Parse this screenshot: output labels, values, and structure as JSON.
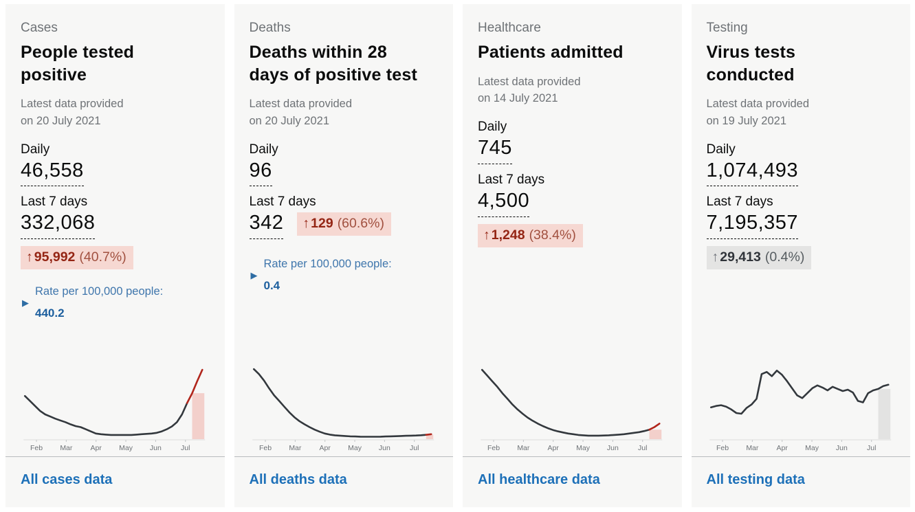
{
  "months": [
    "Feb",
    "Mar",
    "Apr",
    "May",
    "Jun",
    "Jul"
  ],
  "colors": {
    "link_blue": "#1d70b8",
    "heading_black": "#0b0c0c",
    "muted_grey": "#6e7276",
    "bad_badge_bg": "#f6d8d2",
    "bad_badge_text": "#942514",
    "neutral_badge_bg": "#e4e4e3",
    "neutral_badge_text": "#30343a",
    "chart_line": "#33383d",
    "chart_highlight_red": "#b1261c",
    "cases_band_pink": "#f3d0cb",
    "testing_band_grey": "#e3e3e2"
  },
  "cards": [
    {
      "eyebrow": "Cases",
      "title": "People tested positive",
      "provided_line1": "Latest data provided",
      "provided_line2": "on 20 July 2021",
      "daily_label": "Daily",
      "daily_value": "46,558",
      "week_label": "Last 7 days",
      "week_value": "332,068",
      "change": {
        "arrow": "↑",
        "value": "95,992",
        "percent": "(40.7%)",
        "direction": "up-bad"
      },
      "rate": {
        "label": "Rate per 100,000 people:",
        "value": "440.2"
      },
      "footer_link": "All cases data",
      "chart": {
        "type": "line",
        "x_span": "late Jan 2021 to mid Jul 2021",
        "values": [
          0.59,
          0.52,
          0.45,
          0.38,
          0.33,
          0.3,
          0.27,
          0.245,
          0.22,
          0.19,
          0.165,
          0.15,
          0.12,
          0.09,
          0.06,
          0.05,
          0.045,
          0.04,
          0.04,
          0.04,
          0.04,
          0.04,
          0.045,
          0.05,
          0.055,
          0.06,
          0.07,
          0.09,
          0.12,
          0.16,
          0.22,
          0.33,
          0.49,
          0.63,
          0.8,
          0.96
        ],
        "highlight_start": 32,
        "band_start": 33,
        "band_color": "#f3d0cb",
        "line_color": "#33383d",
        "highlight_color": "#b1261c"
      }
    },
    {
      "eyebrow": "Deaths",
      "title": "Deaths within 28 days of positive test",
      "provided_line1": "Latest data provided",
      "provided_line2": "on 20 July 2021",
      "daily_label": "Daily",
      "daily_value": "96",
      "week_label": "Last 7 days",
      "week_value": "342",
      "change": {
        "arrow": "↑",
        "value": "129",
        "percent": "(60.6%)",
        "direction": "up-bad"
      },
      "rate": {
        "label": "Rate per 100,000 people:",
        "value": "0.4"
      },
      "footer_link": "All deaths data",
      "chart": {
        "type": "line",
        "x_span": "late Jan 2021 to mid Jul 2021",
        "values": [
          0.97,
          0.9,
          0.81,
          0.7,
          0.6,
          0.52,
          0.44,
          0.36,
          0.29,
          0.235,
          0.19,
          0.15,
          0.115,
          0.085,
          0.06,
          0.045,
          0.035,
          0.03,
          0.025,
          0.02,
          0.018,
          0.016,
          0.015,
          0.015,
          0.015,
          0.016,
          0.018,
          0.02,
          0.022,
          0.025,
          0.028,
          0.03,
          0.032,
          0.036,
          0.042,
          0.05
        ],
        "highlight_start": 34,
        "band_start": 34,
        "band_color": "#f3d0cb",
        "line_color": "#33383d",
        "highlight_color": "#b1261c"
      }
    },
    {
      "eyebrow": "Healthcare",
      "title": "Patients admitted",
      "provided_line1": "Latest data provided",
      "provided_line2": "on 14 July 2021",
      "daily_label": "Daily",
      "daily_value": "745",
      "week_label": "Last 7 days",
      "week_value": "4,500",
      "change": {
        "arrow": "↑",
        "value": "1,248",
        "percent": "(38.4%)",
        "direction": "up-bad"
      },
      "footer_link": "All healthcare data",
      "chart": {
        "type": "line",
        "x_span": "late Jan 2021 to mid Jul 2021",
        "values": [
          0.96,
          0.88,
          0.8,
          0.72,
          0.63,
          0.55,
          0.47,
          0.4,
          0.34,
          0.285,
          0.24,
          0.2,
          0.165,
          0.135,
          0.11,
          0.09,
          0.075,
          0.06,
          0.05,
          0.04,
          0.035,
          0.03,
          0.03,
          0.03,
          0.032,
          0.035,
          0.04,
          0.045,
          0.05,
          0.06,
          0.07,
          0.08,
          0.095,
          0.115,
          0.15,
          0.2
        ],
        "highlight_start": 33,
        "band_start": 33,
        "band_color": "#f3d0cb",
        "line_color": "#33383d",
        "highlight_color": "#b1261c"
      }
    },
    {
      "eyebrow": "Testing",
      "title": "Virus tests conducted",
      "provided_line1": "Latest data provided",
      "provided_line2": "on 19 July 2021",
      "daily_label": "Daily",
      "daily_value": "1,074,493",
      "week_label": "Last 7 days",
      "week_value": "7,195,357",
      "change": {
        "arrow": "↑",
        "value": "29,413",
        "percent": "(0.4%)",
        "direction": "up-neutral"
      },
      "footer_link": "All testing data",
      "chart": {
        "type": "line",
        "x_span": "late Jan 2021 to mid Jul 2021",
        "values": [
          0.43,
          0.45,
          0.46,
          0.44,
          0.4,
          0.35,
          0.34,
          0.42,
          0.47,
          0.55,
          0.9,
          0.93,
          0.87,
          0.95,
          0.89,
          0.8,
          0.7,
          0.6,
          0.56,
          0.63,
          0.7,
          0.74,
          0.71,
          0.67,
          0.72,
          0.69,
          0.66,
          0.68,
          0.64,
          0.52,
          0.5,
          0.63,
          0.67,
          0.69,
          0.73,
          0.75
        ],
        "highlight_start": null,
        "band_start": 33,
        "band_color": "#e3e3e2",
        "line_color": "#33383d",
        "highlight_color": null
      }
    }
  ]
}
